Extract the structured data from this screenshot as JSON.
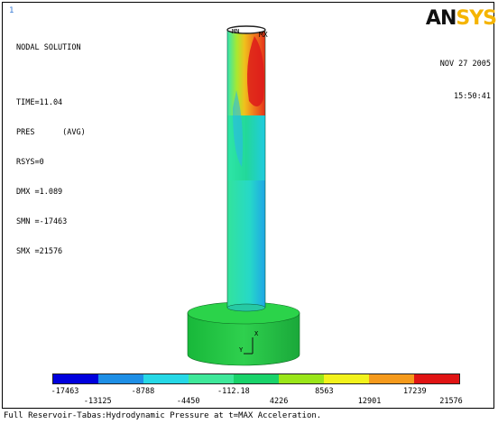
{
  "window_number": "1",
  "info": {
    "title": "NODAL SOLUTION",
    "time": "TIME=11.04",
    "pres": "PRES      (AVG)",
    "rsys": "RSYS=0",
    "dmx": "DMX =1.089",
    "smn": "SMN =-17463",
    "smx": "SMX =21576"
  },
  "logo": {
    "part1": "AN",
    "part2": "SYS"
  },
  "date": {
    "day": "NOV 27 2005",
    "time": "15:50:41"
  },
  "legend": {
    "colors": [
      "#0000dd",
      "#1e8fe6",
      "#26d8e6",
      "#3fe89a",
      "#19d36a",
      "#9ae619",
      "#f2f21c",
      "#f59a1c",
      "#e01414"
    ],
    "values_top": [
      "-17463",
      "-8788",
      "-112.18",
      "8563",
      "17239"
    ],
    "values_bottom": [
      "-13125",
      "-4450",
      "4226",
      "12901",
      "21576"
    ]
  },
  "model_markers": {
    "max": "MX",
    "min": "MN",
    "axis_x": "X",
    "axis_y": "Y"
  },
  "caption": "Full Reservoir-Tabas:Hydrodynamic Pressure at t=MAX Acceleration."
}
